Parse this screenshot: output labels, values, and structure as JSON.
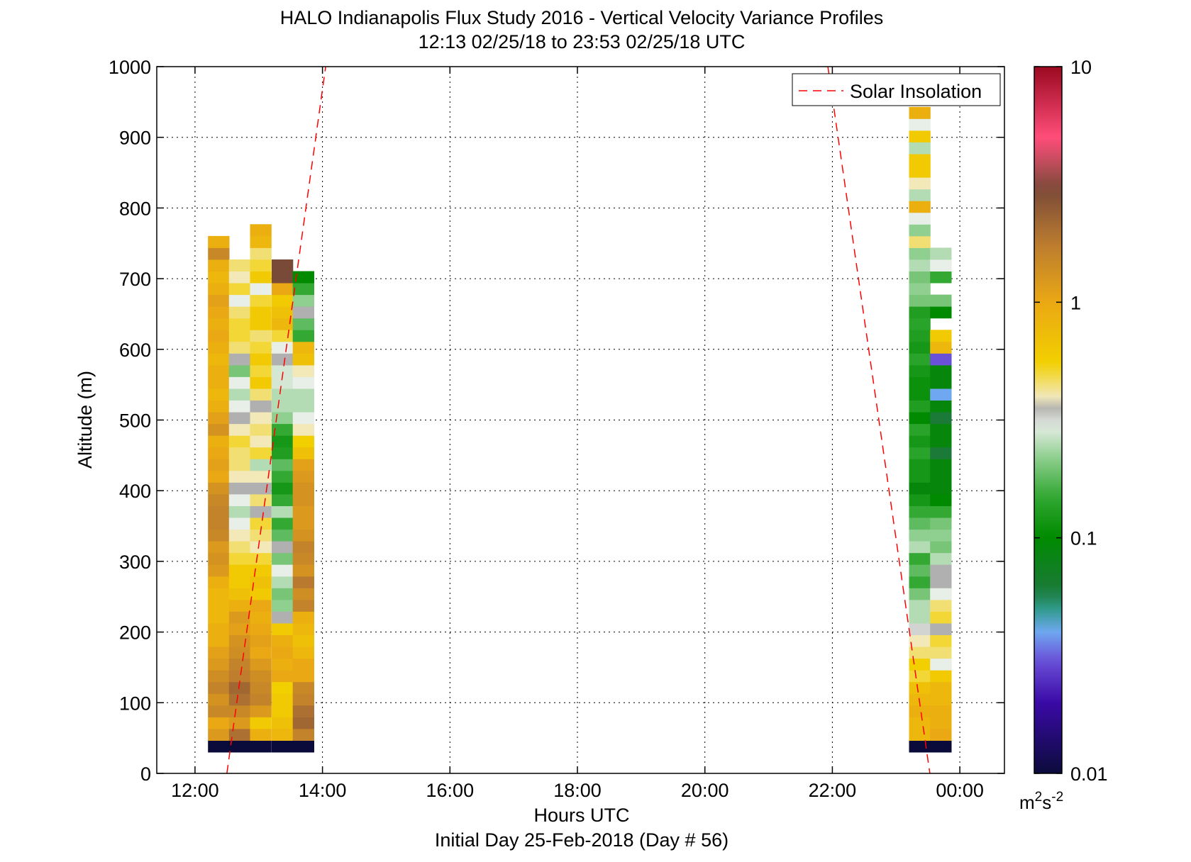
{
  "chart_data": {
    "type": "heatmap",
    "title": "HALO Indianapolis Flux Study 2016 - Vertical Velocity Variance Profiles",
    "subtitle": "12:13 02/25/18 to 23:53 02/25/18  UTC",
    "xlabel": "Hours UTC",
    "xlabel2": "Initial Day 25-Feb-2018 (Day # 56)",
    "ylabel": "Altitude (m)",
    "xlim": [
      11.4,
      24.7
    ],
    "ylim": [
      0,
      1000
    ],
    "xticks": [
      12,
      14,
      16,
      18,
      20,
      22,
      24
    ],
    "xtick_labels": [
      "12:00",
      "14:00",
      "16:00",
      "18:00",
      "20:00",
      "22:00",
      "00:00"
    ],
    "yticks": [
      0,
      100,
      200,
      300,
      400,
      500,
      600,
      700,
      800,
      900,
      1000
    ],
    "ytick_labels": [
      "0",
      "100",
      "200",
      "300",
      "400",
      "500",
      "600",
      "700",
      "800",
      "900",
      "1000"
    ],
    "grid": true,
    "legend": {
      "entries": [
        "Solar Insolation"
      ],
      "location": "top-right"
    },
    "colorbar": {
      "scale": "log",
      "range": [
        0.01,
        10
      ],
      "ticks": [
        0.01,
        0.1,
        1,
        10
      ],
      "tick_labels": [
        "0.01",
        "0.1",
        "1",
        "10"
      ],
      "unit_base": "m",
      "unit_exp1": "2",
      "unit_mid": "s",
      "unit_exp2": "-2",
      "stops": [
        {
          "v": 0.01,
          "color": "#0b0b3b"
        },
        {
          "v": 0.02,
          "color": "#3a0aa6"
        },
        {
          "v": 0.03,
          "color": "#6a4fd8"
        },
        {
          "v": 0.04,
          "color": "#6fa8f0"
        },
        {
          "v": 0.05,
          "color": "#2f9a8a"
        },
        {
          "v": 0.06,
          "color": "#1b7a38"
        },
        {
          "v": 0.1,
          "color": "#008a00"
        },
        {
          "v": 0.15,
          "color": "#33a833"
        },
        {
          "v": 0.22,
          "color": "#8fcf8f"
        },
        {
          "v": 0.3,
          "color": "#e8eee8"
        },
        {
          "v": 0.35,
          "color": "#b0b0b0"
        },
        {
          "v": 0.4,
          "color": "#f2e8b8"
        },
        {
          "v": 0.55,
          "color": "#f2d000"
        },
        {
          "v": 1.0,
          "color": "#eaa814"
        },
        {
          "v": 1.8,
          "color": "#b97a30"
        },
        {
          "v": 3.0,
          "color": "#7a4a38"
        },
        {
          "v": 5.0,
          "color": "#ff4d7a"
        },
        {
          "v": 10,
          "color": "#9a0a20"
        }
      ]
    },
    "time_bin_hours": 0.333,
    "altitude_bin_m": 16.6,
    "columns": [
      {
        "t": 12.37,
        "z0": 30,
        "values": [
          0.01,
          1.2,
          1.0,
          1.5,
          1.3,
          1.6,
          1.4,
          1.2,
          1.1,
          0.9,
          0.9,
          0.8,
          0.8,
          0.8,
          0.9,
          1.2,
          1.3,
          1.2,
          1.5,
          1.6,
          1.6,
          1.5,
          1.3,
          1.0,
          1.1,
          1.0,
          0.9,
          1.3,
          1.1,
          0.9,
          0.8,
          0.9,
          0.9,
          0.8,
          0.9,
          1.0,
          0.9,
          1.0,
          1.1,
          0.9,
          0.8,
          0.9,
          1.5,
          0.9
        ]
      },
      {
        "t": 12.7,
        "z0": 30,
        "values": [
          0.01,
          2.0,
          1.2,
          1.5,
          2.0,
          2.2,
          1.7,
          1.6,
          1.4,
          1.3,
          1.1,
          1.2,
          0.9,
          0.7,
          0.6,
          0.6,
          0.5,
          0.45,
          0.4,
          0.3,
          0.25,
          0.3,
          0.35,
          0.4,
          0.45,
          0.45,
          0.5,
          0.4,
          0.35,
          0.3,
          0.25,
          0.3,
          0.2,
          0.35,
          0.45,
          0.5,
          0.5,
          0.45,
          0.3,
          0.5,
          0.4,
          0.45
        ]
      },
      {
        "t": 13.03,
        "z0": 30,
        "values": [
          0.01,
          0.9,
          0.6,
          1.2,
          1.6,
          1.5,
          1.4,
          1.2,
          1.0,
          1.1,
          1.0,
          0.9,
          1.0,
          0.6,
          0.7,
          0.6,
          0.5,
          0.4,
          0.45,
          0.5,
          0.35,
          0.45,
          0.35,
          0.4,
          0.25,
          0.5,
          0.4,
          0.45,
          0.4,
          0.35,
          0.45,
          0.6,
          0.5,
          0.6,
          0.5,
          0.45,
          0.6,
          0.6,
          0.5,
          0.3,
          0.6,
          0.5,
          0.45,
          0.8,
          0.9
        ]
      },
      {
        "t": 13.37,
        "z0": 30,
        "values": [
          0.01,
          0.8,
          0.7,
          0.6,
          0.6,
          0.55,
          1.0,
          0.9,
          1.0,
          0.9,
          0.6,
          0.35,
          0.22,
          0.2,
          0.25,
          0.3,
          0.2,
          0.35,
          0.18,
          0.15,
          0.25,
          0.15,
          0.12,
          0.15,
          0.18,
          0.13,
          0.12,
          0.15,
          0.22,
          0.25,
          0.25,
          0.28,
          0.28,
          0.35,
          0.3,
          0.5,
          0.8,
          0.7,
          0.6,
          1.0,
          3.0,
          3.0
        ]
      },
      {
        "t": 13.7,
        "z0": 30,
        "values": [
          0.01,
          1.6,
          2.2,
          2.0,
          1.6,
          1.5,
          1.0,
          1.0,
          0.8,
          0.7,
          0.8,
          0.9,
          1.6,
          1.4,
          1.8,
          1.3,
          1.5,
          1.6,
          1.3,
          1.2,
          1.2,
          1.3,
          1.3,
          1.2,
          1.1,
          0.7,
          0.55,
          0.4,
          0.3,
          0.25,
          0.25,
          0.3,
          0.4,
          0.7,
          0.8,
          0.15,
          0.18,
          0.35,
          0.22,
          0.15,
          0.1
        ]
      },
      {
        "t": 23.37,
        "z0": 30,
        "values": [
          0.01,
          0.8,
          0.8,
          0.9,
          0.8,
          0.7,
          0.5,
          0.55,
          0.45,
          0.4,
          0.32,
          0.25,
          0.25,
          0.2,
          0.15,
          0.18,
          0.15,
          0.25,
          0.22,
          0.18,
          0.15,
          0.12,
          0.09,
          0.12,
          0.12,
          0.14,
          0.12,
          0.14,
          0.1,
          0.13,
          0.11,
          0.11,
          0.12,
          0.14,
          0.12,
          0.13,
          0.14,
          0.13,
          0.2,
          0.22,
          0.2,
          0.25,
          0.22,
          0.45,
          0.22,
          0.3,
          0.9,
          0.25,
          0.4,
          0.6,
          0.6,
          0.25,
          0.6,
          0.3,
          0.9
        ]
      },
      {
        "t": 23.7,
        "z0": 30,
        "values": [
          0.01,
          1.0,
          0.9,
          0.9,
          0.8,
          0.8,
          0.6,
          0.3,
          0.45,
          0.5,
          0.35,
          0.5,
          0.45,
          0.3,
          0.35,
          0.35,
          0.25,
          0.2,
          0.22,
          0.2,
          0.15,
          0.1,
          0.09,
          0.09,
          0.09,
          0.06,
          0.09,
          0.09,
          0.06,
          0.09,
          0.04,
          0.09,
          0.09,
          0.03,
          0.8,
          0.6,
          null,
          0.1,
          0.2,
          null,
          0.15,
          0.3,
          0.25
        ]
      }
    ],
    "series": [
      {
        "name": "Solar Insolation",
        "segments": [
          {
            "x": [
              12.5,
              14.05
            ],
            "y": [
              0,
              1000
            ]
          },
          {
            "x": [
              21.93,
              23.53
            ],
            "y": [
              1000,
              0
            ]
          }
        ]
      }
    ]
  }
}
